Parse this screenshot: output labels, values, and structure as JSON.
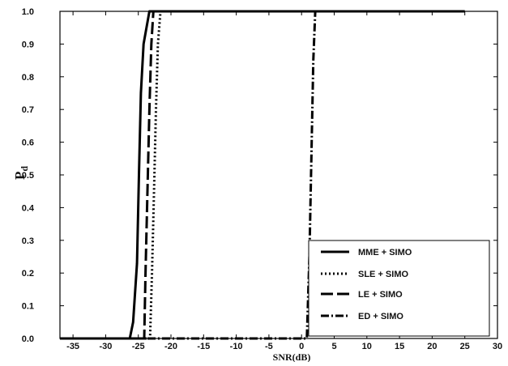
{
  "chart_data": {
    "type": "line",
    "xlabel": "SNR(dB)",
    "ylabel": "P",
    "ylabel_subscript": "d",
    "xlim": [
      -37,
      30
    ],
    "ylim": [
      0.0,
      1.0
    ],
    "x_ticks": [
      -35,
      -30,
      -25,
      -20,
      -15,
      -10,
      -5,
      0,
      5,
      10,
      15,
      20,
      25,
      30
    ],
    "y_ticks": [
      0.0,
      0.1,
      0.2,
      0.3,
      0.4,
      0.5,
      0.6,
      0.7,
      0.8,
      0.9,
      1.0
    ],
    "x_tick_labels": [
      "-35",
      "-30",
      "-25",
      "-20",
      "-15",
      "-10",
      "-5",
      "0",
      "5",
      "10",
      "15",
      "20",
      "25",
      "30"
    ],
    "y_tick_labels": [
      "0.0",
      "0.1",
      "0.2",
      "0.3",
      "0.4",
      "0.5",
      "0.6",
      "0.7",
      "0.8",
      "0.9",
      "1.0"
    ],
    "grid": false,
    "legend_position": "bottom-right",
    "series": [
      {
        "name": "MME + SIMO",
        "style": "solid",
        "x": [
          -37,
          -26.3,
          -25.8,
          -25.2,
          -24.9,
          -24.6,
          -24.2,
          -23.3,
          25
        ],
        "y": [
          0.0,
          0.0,
          0.05,
          0.23,
          0.5,
          0.75,
          0.9,
          1.0,
          1.0
        ]
      },
      {
        "name": "SLE + SIMO",
        "style": "dotted",
        "x": [
          -37,
          -23.2,
          -22.9,
          -22.6,
          -22.3,
          -22.0,
          -21.6
        ],
        "y": [
          0.0,
          0.0,
          0.2,
          0.45,
          0.7,
          0.9,
          1.0
        ]
      },
      {
        "name": "LE + SIMO",
        "style": "long-dash",
        "x": [
          -37,
          -24.1,
          -23.9,
          -23.6,
          -23.3,
          -23.0,
          -22.7
        ],
        "y": [
          0.0,
          0.0,
          0.2,
          0.45,
          0.7,
          0.9,
          1.0
        ]
      },
      {
        "name": "ED + SIMO",
        "style": "dash-dot",
        "x": [
          -37,
          0.8,
          1.2,
          1.5,
          1.8,
          2.1
        ],
        "y": [
          0.0,
          0.0,
          0.25,
          0.55,
          0.85,
          1.0
        ]
      }
    ]
  }
}
